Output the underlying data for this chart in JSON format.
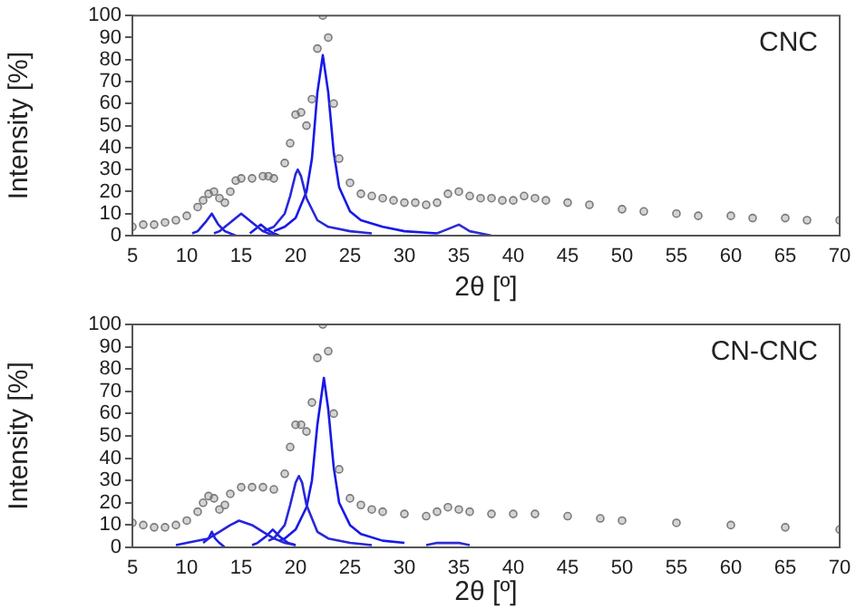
{
  "chart_data": [
    {
      "type": "line",
      "xlabel": "2θ [º]",
      "ylabel": "Intensity [%]",
      "annotations": [
        "CNC"
      ],
      "xlim": [
        5,
        70
      ],
      "xticks": [
        5,
        10,
        15,
        20,
        25,
        30,
        35,
        40,
        45,
        50,
        55,
        60,
        65,
        70
      ],
      "ylim": [
        0,
        100
      ],
      "yticks": [
        0,
        10,
        20,
        30,
        40,
        50,
        60,
        70,
        80,
        90,
        100
      ],
      "series": [
        {
          "type": "scatter",
          "marker": "circle",
          "color": "#7a7a7a",
          "x": [
            5,
            6,
            7,
            8,
            9,
            10,
            11,
            11.5,
            12,
            12.5,
            13,
            13.5,
            14,
            14.5,
            15,
            16,
            17,
            17.5,
            18,
            19,
            19.5,
            20,
            20.5,
            21,
            21.5,
            22,
            22.5,
            23,
            23.5,
            24,
            25,
            26,
            27,
            28,
            29,
            30,
            31,
            32,
            33,
            34,
            35,
            36,
            37,
            38,
            39,
            40,
            41,
            42,
            43,
            45,
            47,
            50,
            52,
            55,
            57,
            60,
            62,
            65,
            67,
            70
          ],
          "values": [
            4,
            5,
            5,
            6,
            7,
            9,
            13,
            16,
            19,
            20,
            17,
            15,
            20,
            25,
            26,
            26,
            27,
            27,
            26,
            33,
            42,
            55,
            56,
            50,
            62,
            85,
            100,
            90,
            60,
            35,
            24,
            19,
            18,
            17,
            16,
            15,
            15,
            14,
            15,
            19,
            20,
            18,
            17,
            17,
            16,
            16,
            18,
            17,
            16,
            15,
            14,
            12,
            11,
            10,
            9,
            9,
            8,
            8,
            7,
            7
          ]
        },
        {
          "type": "line",
          "marker": "none",
          "color": "#2020e0",
          "x": [
            10.5,
            11,
            11.7,
            12.3,
            12.9,
            13.5,
            14.5
          ],
          "values": [
            1,
            2,
            6,
            10,
            5,
            2,
            0
          ]
        },
        {
          "type": "line",
          "marker": "none",
          "color": "#2424dc",
          "x": [
            12.5,
            13,
            14,
            15,
            16,
            17,
            18
          ],
          "values": [
            1,
            2,
            6,
            10,
            6,
            2,
            0
          ]
        },
        {
          "type": "line",
          "marker": "none",
          "color": "#1c1ce4",
          "x": [
            15.8,
            16.3,
            16.8,
            17.3,
            18,
            18.5
          ],
          "values": [
            1,
            3,
            5,
            3,
            1,
            0
          ]
        },
        {
          "type": "line",
          "marker": "none",
          "color": "#2828d8",
          "x": [
            17,
            18,
            19,
            19.5,
            20,
            20.2,
            20.5,
            21,
            22,
            23,
            25,
            27
          ],
          "values": [
            2,
            4,
            10,
            18,
            28,
            30,
            27,
            17,
            7,
            4,
            2,
            1
          ]
        },
        {
          "type": "line",
          "marker": "none",
          "color": "#1818e8",
          "x": [
            18,
            19,
            20,
            21,
            21.5,
            22,
            22.5,
            23,
            23.5,
            24,
            25,
            26,
            28,
            30,
            33
          ],
          "values": [
            2,
            4,
            8,
            20,
            35,
            65,
            82,
            65,
            38,
            22,
            11,
            7,
            4,
            2,
            1
          ]
        },
        {
          "type": "line",
          "marker": "none",
          "color": "#2c2cd4",
          "x": [
            33,
            33.5,
            35,
            36,
            37,
            38
          ],
          "values": [
            1,
            2,
            5,
            2,
            1,
            0
          ]
        }
      ]
    },
    {
      "type": "line",
      "xlabel": "2θ [º]",
      "ylabel": "Intensity [%]",
      "annotations": [
        "CN-CNC"
      ],
      "xlim": [
        5,
        70
      ],
      "xticks": [
        5,
        10,
        15,
        20,
        25,
        30,
        35,
        40,
        45,
        50,
        55,
        60,
        65,
        70
      ],
      "ylim": [
        0,
        100
      ],
      "yticks": [
        0,
        10,
        20,
        30,
        40,
        50,
        60,
        70,
        80,
        90,
        100
      ],
      "series": [
        {
          "type": "scatter",
          "marker": "circle",
          "color": "#7a7a7a",
          "x": [
            5,
            6,
            7,
            8,
            9,
            10,
            11,
            11.5,
            12,
            12.5,
            13,
            13.5,
            14,
            15,
            16,
            17,
            18,
            19,
            19.5,
            20,
            20.5,
            21,
            21.5,
            22,
            22.5,
            23,
            23.5,
            24,
            25,
            26,
            27,
            28,
            30,
            32,
            33,
            34,
            35,
            36,
            38,
            40,
            42,
            45,
            48,
            50,
            55,
            60,
            65,
            70
          ],
          "values": [
            11,
            10,
            9,
            9,
            10,
            12,
            16,
            20,
            23,
            22,
            17,
            19,
            24,
            27,
            27,
            27,
            26,
            33,
            45,
            55,
            55,
            52,
            65,
            85,
            100,
            88,
            60,
            35,
            22,
            19,
            17,
            16,
            15,
            14,
            16,
            18,
            17,
            16,
            15,
            15,
            15,
            14,
            13,
            12,
            11,
            10,
            9,
            8
          ]
        },
        {
          "type": "line",
          "marker": "none",
          "color": "#2020e0",
          "x": [
            11.5,
            12,
            12.3,
            12.6,
            13,
            13.5
          ],
          "values": [
            2,
            4,
            7,
            4,
            2,
            0
          ]
        },
        {
          "type": "line",
          "marker": "none",
          "color": "#2424dc",
          "x": [
            9,
            10,
            12,
            13,
            14,
            14.8,
            16,
            17,
            18,
            19,
            20
          ],
          "values": [
            1,
            2,
            4,
            7,
            10,
            12,
            10,
            7,
            4,
            2,
            1
          ]
        },
        {
          "type": "line",
          "marker": "none",
          "color": "#1c1ce4",
          "x": [
            16,
            16.5,
            17.3,
            17.9,
            18.5,
            19.3,
            20
          ],
          "values": [
            1,
            2,
            5,
            8,
            5,
            2,
            1
          ]
        },
        {
          "type": "line",
          "marker": "none",
          "color": "#2828d8",
          "x": [
            17.5,
            18,
            19,
            19.5,
            20,
            20.3,
            20.6,
            21,
            22,
            23,
            25,
            27
          ],
          "values": [
            3,
            4,
            10,
            19,
            29,
            32,
            29,
            19,
            7,
            4,
            2,
            1
          ]
        },
        {
          "type": "line",
          "marker": "none",
          "color": "#1818e8",
          "x": [
            18.5,
            19,
            20,
            21,
            21.5,
            22,
            22.6,
            23,
            23.5,
            24,
            25,
            26,
            28,
            30
          ],
          "values": [
            3,
            4,
            8,
            18,
            30,
            55,
            76,
            62,
            36,
            20,
            10,
            6,
            3,
            2
          ]
        },
        {
          "type": "line",
          "marker": "none",
          "color": "#2c2cd4",
          "x": [
            32,
            33,
            34,
            35,
            36
          ],
          "values": [
            1,
            2,
            2,
            2,
            1
          ]
        }
      ]
    }
  ]
}
